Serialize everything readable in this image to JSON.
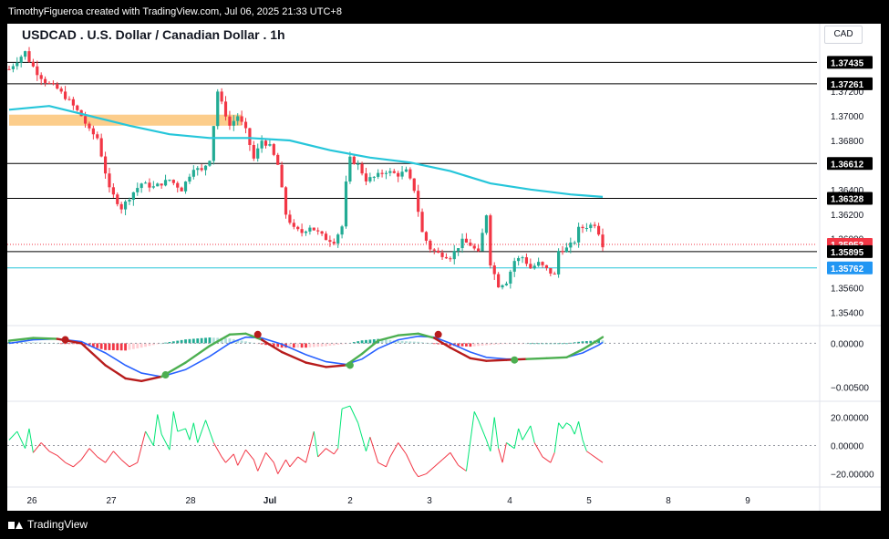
{
  "header": {
    "credit": "TimothyFigueroa created with TradingView.com, Jul 06, 2025 21:33 UTC+8"
  },
  "chart": {
    "title": "USDCAD . U.S. Dollar / Canadian Dollar . 1h",
    "currency": "CAD"
  },
  "footer": {
    "brand": "TradingView"
  },
  "colors": {
    "up": "#22ab94",
    "down": "#f23645",
    "up_dark": "#089981",
    "ma": "#26c6da",
    "macd_fast": "#4caf50",
    "macd_slow": "#2962ff",
    "macd_dark": "#b71c1c",
    "zone": "#fbc06e",
    "rsi_up": "#00e676",
    "rsi_down": "#f23645",
    "badge_red": "#f23645",
    "badge_blue": "#2196f3"
  },
  "chart_data": [
    {
      "type": "candlestick",
      "name": "USDCAD 1h",
      "timeframe": "1h",
      "x_ticks": [
        "26",
        "27",
        "28",
        "Jul",
        "2",
        "3",
        "4",
        "5",
        "8",
        "9"
      ],
      "y_ticks": [
        "1.37200",
        "1.37000",
        "1.36800",
        "1.36400",
        "1.36200",
        "1.36000",
        "1.35600",
        "1.35400"
      ],
      "ylim": [
        1.353,
        1.3775
      ],
      "close_path": [
        [
          0,
          1.3738
        ],
        [
          2,
          1.3745
        ],
        [
          4,
          1.3752
        ],
        [
          5,
          1.3745
        ],
        [
          7,
          1.3735
        ],
        [
          9,
          1.3728
        ],
        [
          12,
          1.3722
        ],
        [
          15,
          1.3712
        ],
        [
          18,
          1.37
        ],
        [
          20,
          1.3688
        ],
        [
          22,
          1.3682
        ],
        [
          25,
          1.364
        ],
        [
          28,
          1.3625
        ],
        [
          31,
          1.3638
        ],
        [
          33,
          1.3645
        ],
        [
          36,
          1.3642
        ],
        [
          40,
          1.3648
        ],
        [
          43,
          1.364
        ],
        [
          46,
          1.3658
        ],
        [
          48,
          1.3655
        ],
        [
          50,
          1.3665
        ],
        [
          52,
          1.372
        ],
        [
          53,
          1.371
        ],
        [
          55,
          1.3692
        ],
        [
          57,
          1.37
        ],
        [
          59,
          1.3688
        ],
        [
          61,
          1.3665
        ],
        [
          63,
          1.368
        ],
        [
          65,
          1.3675
        ],
        [
          67,
          1.366
        ],
        [
          69,
          1.362
        ],
        [
          71,
          1.3608
        ],
        [
          73,
          1.3605
        ],
        [
          75,
          1.361
        ],
        [
          77,
          1.3605
        ],
        [
          79,
          1.36
        ],
        [
          81,
          1.3598
        ],
        [
          83,
          1.361
        ],
        [
          84,
          1.3645
        ],
        [
          85,
          1.3665
        ],
        [
          87,
          1.366
        ],
        [
          89,
          1.3648
        ],
        [
          91,
          1.365
        ],
        [
          94,
          1.3655
        ],
        [
          97,
          1.3652
        ],
        [
          99,
          1.3655
        ],
        [
          101,
          1.364
        ],
        [
          103,
          1.3605
        ],
        [
          105,
          1.3592
        ],
        [
          107,
          1.3588
        ],
        [
          110,
          1.3585
        ],
        [
          113,
          1.3598
        ],
        [
          115,
          1.3595
        ],
        [
          117,
          1.3588
        ],
        [
          119,
          1.362
        ],
        [
          120,
          1.358
        ],
        [
          122,
          1.3562
        ],
        [
          124,
          1.3565
        ],
        [
          126,
          1.3582
        ],
        [
          128,
          1.3585
        ],
        [
          130,
          1.3576
        ],
        [
          132,
          1.358
        ],
        [
          134,
          1.3575
        ],
        [
          136,
          1.357
        ],
        [
          137,
          1.359
        ],
        [
          139,
          1.3592
        ],
        [
          141,
          1.3598
        ],
        [
          142,
          1.3608
        ],
        [
          144,
          1.361
        ],
        [
          146,
          1.3612
        ],
        [
          147,
          1.3605
        ],
        [
          148,
          1.3595
        ]
      ],
      "moving_average": [
        [
          0,
          1.3705
        ],
        [
          10,
          1.3708
        ],
        [
          20,
          1.37
        ],
        [
          30,
          1.3692
        ],
        [
          40,
          1.3685
        ],
        [
          50,
          1.3682
        ],
        [
          60,
          1.3682
        ],
        [
          70,
          1.368
        ],
        [
          80,
          1.3672
        ],
        [
          90,
          1.3666
        ],
        [
          100,
          1.3662
        ],
        [
          110,
          1.3655
        ],
        [
          120,
          1.3645
        ],
        [
          130,
          1.364
        ],
        [
          140,
          1.3636
        ],
        [
          148,
          1.3634
        ]
      ],
      "horizontal_levels": [
        {
          "label": "1.37435",
          "value": 1.37435,
          "kind": "line"
        },
        {
          "label": "1.37261",
          "value": 1.37261,
          "kind": "line"
        },
        {
          "label": "1.36612",
          "value": 1.36612,
          "kind": "line"
        },
        {
          "label": "1.36328",
          "value": 1.36328,
          "kind": "line"
        },
        {
          "label": "1.35953",
          "value": 1.35953,
          "kind": "last_price"
        },
        {
          "label": "1.35895",
          "value": 1.35895,
          "kind": "line"
        },
        {
          "label": "1.35762",
          "value": 1.35762,
          "kind": "ma_level"
        }
      ],
      "zone": {
        "from": 1.3692,
        "to": 1.3698,
        "x_start": 0,
        "x_end": 58
      }
    },
    {
      "type": "macd",
      "y_ticks": [
        "0.00000",
        "−0.00500"
      ],
      "ylim": [
        -0.0064,
        0.0016
      ],
      "fast": [
        [
          0,
          0.0003
        ],
        [
          6,
          0.0006
        ],
        [
          12,
          0.0005
        ],
        [
          18,
          0.0
        ],
        [
          24,
          -0.0025
        ],
        [
          29,
          -0.004
        ],
        [
          33,
          -0.0043
        ],
        [
          38,
          -0.0038
        ],
        [
          44,
          -0.0022
        ],
        [
          50,
          -0.0003
        ],
        [
          55,
          0.001
        ],
        [
          59,
          0.0011
        ],
        [
          63,
          0.0004
        ],
        [
          68,
          -0.001
        ],
        [
          74,
          -0.0022
        ],
        [
          79,
          -0.0027
        ],
        [
          84,
          -0.0025
        ],
        [
          88,
          -0.0012
        ],
        [
          92,
          0.0003
        ],
        [
          97,
          0.0009
        ],
        [
          102,
          0.0011
        ],
        [
          106,
          0.0006
        ],
        [
          110,
          -0.0005
        ],
        [
          115,
          -0.0017
        ],
        [
          119,
          -0.002
        ],
        [
          124,
          -0.0019
        ],
        [
          129,
          -0.0018
        ],
        [
          134,
          -0.0017
        ],
        [
          139,
          -0.0016
        ],
        [
          143,
          -0.0007
        ],
        [
          147,
          0.0004
        ],
        [
          148,
          0.0007
        ]
      ],
      "slow": [
        [
          0,
          0.0
        ],
        [
          6,
          0.0004
        ],
        [
          12,
          0.0005
        ],
        [
          18,
          0.0002
        ],
        [
          24,
          -0.0011
        ],
        [
          29,
          -0.0025
        ],
        [
          33,
          -0.0034
        ],
        [
          38,
          -0.0038
        ],
        [
          44,
          -0.003
        ],
        [
          50,
          -0.0015
        ],
        [
          55,
          0.0
        ],
        [
          59,
          0.0007
        ],
        [
          63,
          0.0006
        ],
        [
          68,
          -0.0001
        ],
        [
          74,
          -0.0013
        ],
        [
          79,
          -0.0021
        ],
        [
          84,
          -0.0024
        ],
        [
          88,
          -0.0018
        ],
        [
          92,
          -0.0006
        ],
        [
          97,
          0.0004
        ],
        [
          102,
          0.0008
        ],
        [
          106,
          0.0007
        ],
        [
          110,
          0.0
        ],
        [
          115,
          -0.001
        ],
        [
          119,
          -0.0016
        ],
        [
          124,
          -0.0018
        ],
        [
          129,
          -0.0018
        ],
        [
          134,
          -0.0017
        ],
        [
          139,
          -0.0016
        ],
        [
          143,
          -0.0011
        ],
        [
          147,
          -0.0002
        ],
        [
          148,
          0.0001
        ]
      ],
      "cross_markers": [
        {
          "x": 14,
          "value": 0.0004,
          "kind": "bear"
        },
        {
          "x": 39,
          "value": -0.0036,
          "kind": "bull"
        },
        {
          "x": 62,
          "value": 0.001,
          "kind": "bear"
        },
        {
          "x": 85,
          "value": -0.0025,
          "kind": "bull"
        },
        {
          "x": 107,
          "value": 0.001,
          "kind": "bear"
        },
        {
          "x": 126,
          "value": -0.0019,
          "kind": "bull"
        }
      ]
    },
    {
      "type": "oscillator",
      "y_ticks": [
        "20.00000",
        "0.00000",
        "−20.00000"
      ],
      "ylim": [
        -28,
        30
      ],
      "values": [
        [
          0,
          4
        ],
        [
          2,
          10
        ],
        [
          4,
          -2
        ],
        [
          5,
          12
        ],
        [
          6,
          -5
        ],
        [
          8,
          2
        ],
        [
          10,
          -4
        ],
        [
          12,
          -7
        ],
        [
          14,
          -12
        ],
        [
          16,
          -15
        ],
        [
          18,
          -10
        ],
        [
          20,
          -2
        ],
        [
          22,
          -8
        ],
        [
          24,
          -12
        ],
        [
          26,
          -4
        ],
        [
          28,
          -10
        ],
        [
          30,
          -15
        ],
        [
          32,
          -12
        ],
        [
          34,
          10
        ],
        [
          36,
          0
        ],
        [
          37,
          22
        ],
        [
          38,
          8
        ],
        [
          40,
          -3
        ],
        [
          41,
          24
        ],
        [
          42,
          10
        ],
        [
          44,
          12
        ],
        [
          45,
          4
        ],
        [
          46,
          16
        ],
        [
          47,
          2
        ],
        [
          49,
          18
        ],
        [
          50,
          10
        ],
        [
          51,
          2
        ],
        [
          53,
          -8
        ],
        [
          54,
          -12
        ],
        [
          56,
          -6
        ],
        [
          57,
          -14
        ],
        [
          59,
          -3
        ],
        [
          61,
          -10
        ],
        [
          62,
          -18
        ],
        [
          64,
          -5
        ],
        [
          66,
          -12
        ],
        [
          67,
          -20
        ],
        [
          69,
          -10
        ],
        [
          70,
          -15
        ],
        [
          72,
          -8
        ],
        [
          74,
          -12
        ],
        [
          76,
          10
        ],
        [
          77,
          -8
        ],
        [
          79,
          -2
        ],
        [
          81,
          -6
        ],
        [
          82,
          -2
        ],
        [
          83,
          26
        ],
        [
          85,
          28
        ],
        [
          87,
          16
        ],
        [
          89,
          -4
        ],
        [
          90,
          6
        ],
        [
          92,
          -12
        ],
        [
          94,
          -15
        ],
        [
          95,
          -8
        ],
        [
          97,
          2
        ],
        [
          99,
          -6
        ],
        [
          101,
          -18
        ],
        [
          102,
          -22
        ],
        [
          104,
          -20
        ],
        [
          106,
          -15
        ],
        [
          108,
          -10
        ],
        [
          110,
          -5
        ],
        [
          112,
          -14
        ],
        [
          114,
          -18
        ],
        [
          116,
          24
        ],
        [
          117,
          18
        ],
        [
          119,
          4
        ],
        [
          120,
          -4
        ],
        [
          121,
          20
        ],
        [
          122,
          -2
        ],
        [
          123,
          -12
        ],
        [
          124,
          2
        ],
        [
          126,
          -2
        ],
        [
          127,
          12
        ],
        [
          128,
          4
        ],
        [
          130,
          14
        ],
        [
          131,
          2
        ],
        [
          133,
          -8
        ],
        [
          135,
          -12
        ],
        [
          136,
          -5
        ],
        [
          137,
          16
        ],
        [
          138,
          12
        ],
        [
          139,
          16
        ],
        [
          140,
          14
        ],
        [
          141,
          8
        ],
        [
          142,
          17
        ],
        [
          143,
          4
        ],
        [
          144,
          -4
        ],
        [
          145,
          -6
        ],
        [
          147,
          -10
        ],
        [
          148,
          -12
        ]
      ]
    }
  ]
}
